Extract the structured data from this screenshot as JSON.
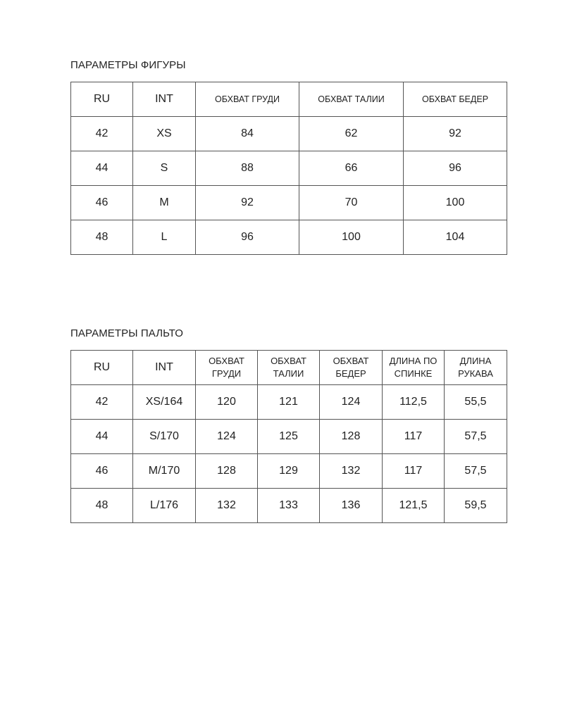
{
  "figure_table": {
    "title": "ПАРАМЕТРЫ ФИГУРЫ",
    "headers": [
      "RU",
      "INT",
      "ОБХВАТ ГРУДИ",
      "ОБХВАТ ТАЛИИ",
      "ОБХВАТ БЕДЕР"
    ],
    "rows": [
      [
        "42",
        "XS",
        "84",
        "62",
        "92"
      ],
      [
        "44",
        "S",
        "88",
        "66",
        "96"
      ],
      [
        "46",
        "M",
        "92",
        "70",
        "100"
      ],
      [
        "48",
        "L",
        "96",
        "100",
        "104"
      ]
    ]
  },
  "coat_table": {
    "title": "ПАРАМЕТРЫ ПАЛЬТО",
    "headers": [
      "RU",
      "INT",
      "ОБХВАТ ГРУДИ",
      "ОБХВАТ ТАЛИИ",
      "ОБХВАТ БЕДЕР",
      "ДЛИНА ПО СПИНКЕ",
      "ДЛИНА РУКАВА"
    ],
    "rows": [
      [
        "42",
        "XS/164",
        "120",
        "121",
        "124",
        "112,5",
        "55,5"
      ],
      [
        "44",
        "S/170",
        "124",
        "125",
        "128",
        "117",
        "57,5"
      ],
      [
        "46",
        "M/170",
        "128",
        "129",
        "132",
        "117",
        "57,5"
      ],
      [
        "48",
        "L/176",
        "132",
        "133",
        "136",
        "121,5",
        "59,5"
      ]
    ]
  }
}
